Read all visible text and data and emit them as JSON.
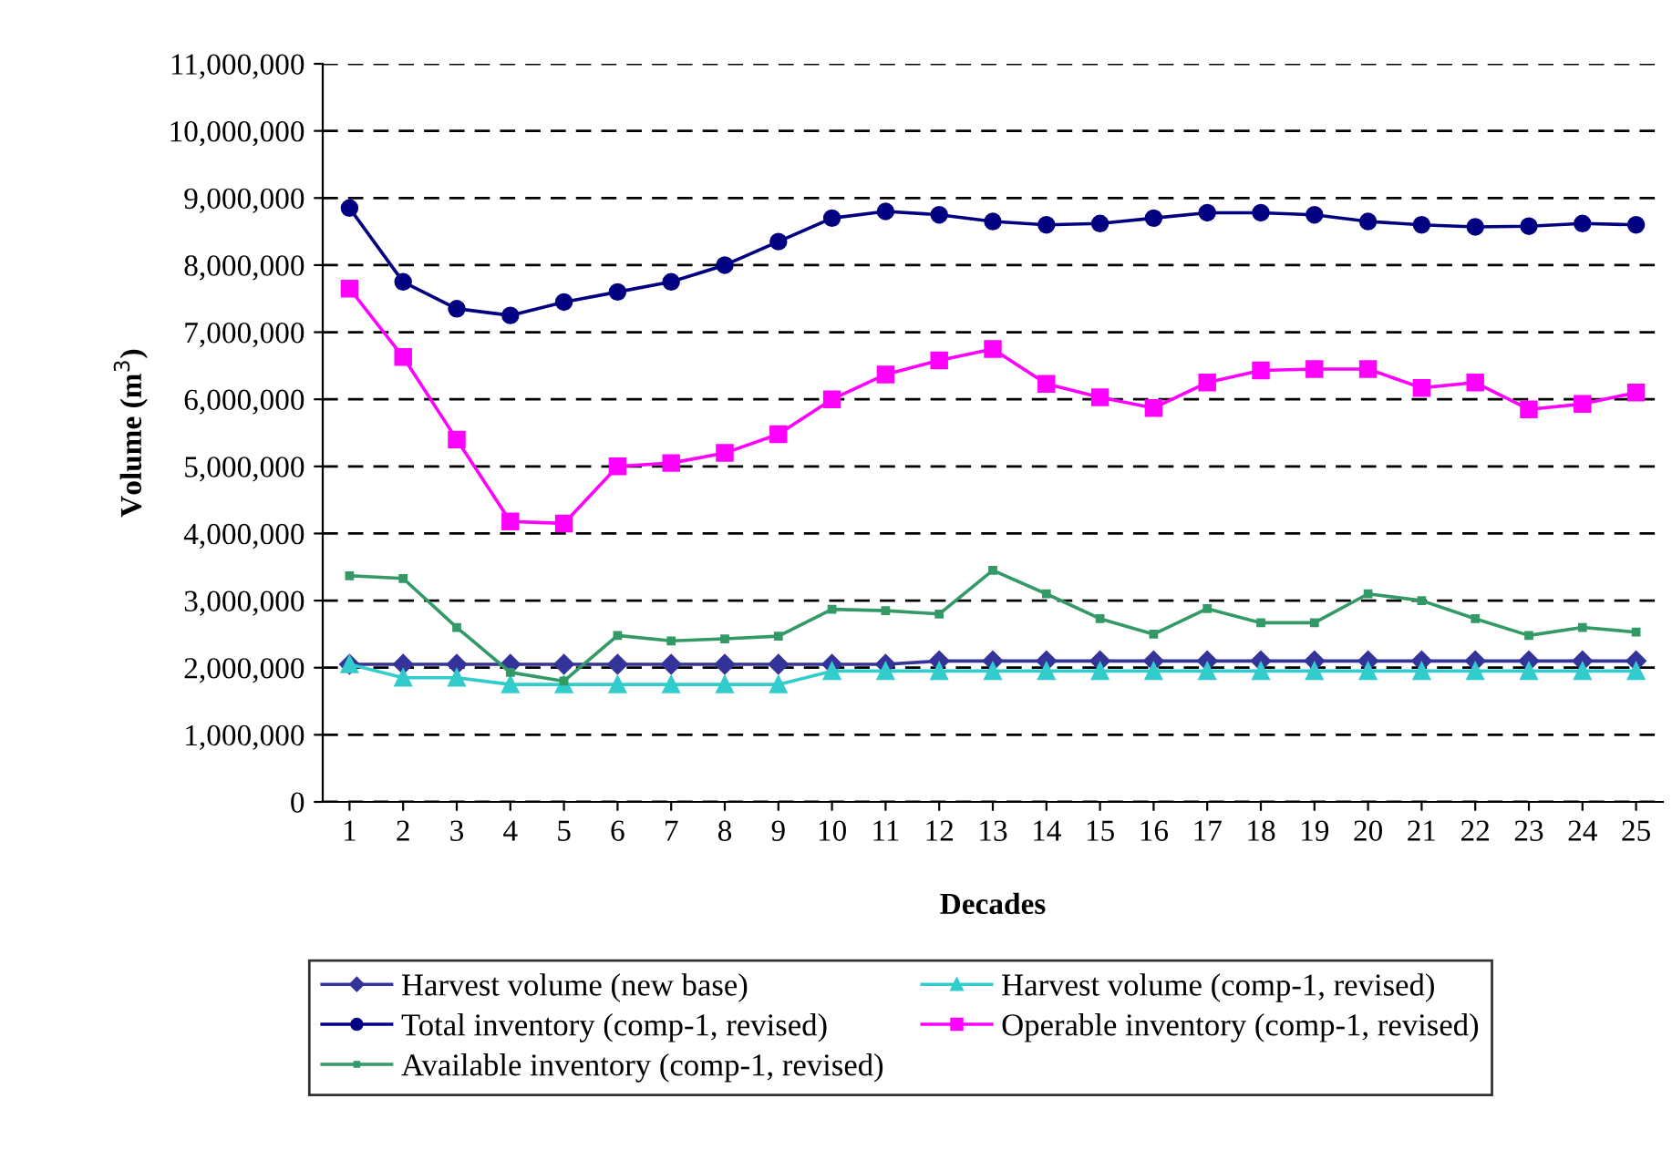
{
  "chart_data": {
    "type": "line",
    "xlabel": "Decades",
    "ylabel": "Volume (m$^{3}$)",
    "categories": [
      "1",
      "2",
      "3",
      "4",
      "5",
      "6",
      "7",
      "8",
      "9",
      "10",
      "11",
      "12",
      "13",
      "14",
      "15",
      "16",
      "17",
      "18",
      "19",
      "20",
      "21",
      "22",
      "23",
      "24",
      "25"
    ],
    "series": [
      {
        "name": "Harvest volume (new base)",
        "color": "#333399",
        "marker": "diamond",
        "values": [
          2050000,
          2050000,
          2050000,
          2050000,
          2050000,
          2050000,
          2050000,
          2050000,
          2050000,
          2050000,
          2050000,
          2100000,
          2100000,
          2100000,
          2100000,
          2100000,
          2100000,
          2100000,
          2100000,
          2100000,
          2100000,
          2100000,
          2100000,
          2100000,
          2100000
        ]
      },
      {
        "name": "Harvest volume (comp-1, revised)",
        "color": "#33cccc",
        "marker": "triangle",
        "values": [
          2050000,
          1850000,
          1850000,
          1750000,
          1750000,
          1750000,
          1750000,
          1750000,
          1750000,
          1950000,
          1950000,
          1950000,
          1950000,
          1950000,
          1950000,
          1950000,
          1950000,
          1950000,
          1950000,
          1950000,
          1950000,
          1950000,
          1950000,
          1950000,
          1950000
        ]
      },
      {
        "name": "Total inventory (comp-1, revised)",
        "color": "#000080",
        "marker": "circle",
        "values": [
          8850000,
          7750000,
          7350000,
          7250000,
          7450000,
          7600000,
          7750000,
          8000000,
          8350000,
          8700000,
          8800000,
          8750000,
          8650000,
          8600000,
          8620000,
          8700000,
          8780000,
          8780000,
          8750000,
          8650000,
          8600000,
          8570000,
          8580000,
          8620000,
          8600000
        ]
      },
      {
        "name": "Operable inventory (comp-1, revised)",
        "color": "#ff00ff",
        "marker": "square",
        "values": [
          7650000,
          6630000,
          5400000,
          4180000,
          4150000,
          5000000,
          5050000,
          5200000,
          5480000,
          6000000,
          6370000,
          6580000,
          6750000,
          6230000,
          6030000,
          5870000,
          6250000,
          6430000,
          6450000,
          6450000,
          6170000,
          6250000,
          5850000,
          5930000,
          6100000
        ]
      },
      {
        "name": "Available inventory (comp-1, revised)",
        "color": "#339966",
        "marker": "square",
        "values": [
          3370000,
          3330000,
          2600000,
          1930000,
          1800000,
          2480000,
          2400000,
          2430000,
          2470000,
          2870000,
          2850000,
          2800000,
          3450000,
          3100000,
          2730000,
          2500000,
          2880000,
          2670000,
          2670000,
          3100000,
          3000000,
          2730000,
          2480000,
          2600000,
          2530000
        ]
      }
    ],
    "ylim": [
      0,
      11000000
    ],
    "yticks": [
      {
        "value": 0,
        "label": "0"
      },
      {
        "value": 1000000,
        "label": "1,000,000"
      },
      {
        "value": 2000000,
        "label": "2,000,000"
      },
      {
        "value": 3000000,
        "label": "3,000,000"
      },
      {
        "value": 4000000,
        "label": "4,000,000"
      },
      {
        "value": 5000000,
        "label": "5,000,000"
      },
      {
        "value": 6000000,
        "label": "6,000,000"
      },
      {
        "value": 7000000,
        "label": "7,000,000"
      },
      {
        "value": 8000000,
        "label": "8,000,000"
      },
      {
        "value": 9000000,
        "label": "9,000,000"
      },
      {
        "value": 10000000,
        "label": "10,000,000"
      },
      {
        "value": 11000000,
        "label": "11,000,000"
      }
    ],
    "grid": "y",
    "legend": "bottom",
    "line_style": "solid"
  }
}
